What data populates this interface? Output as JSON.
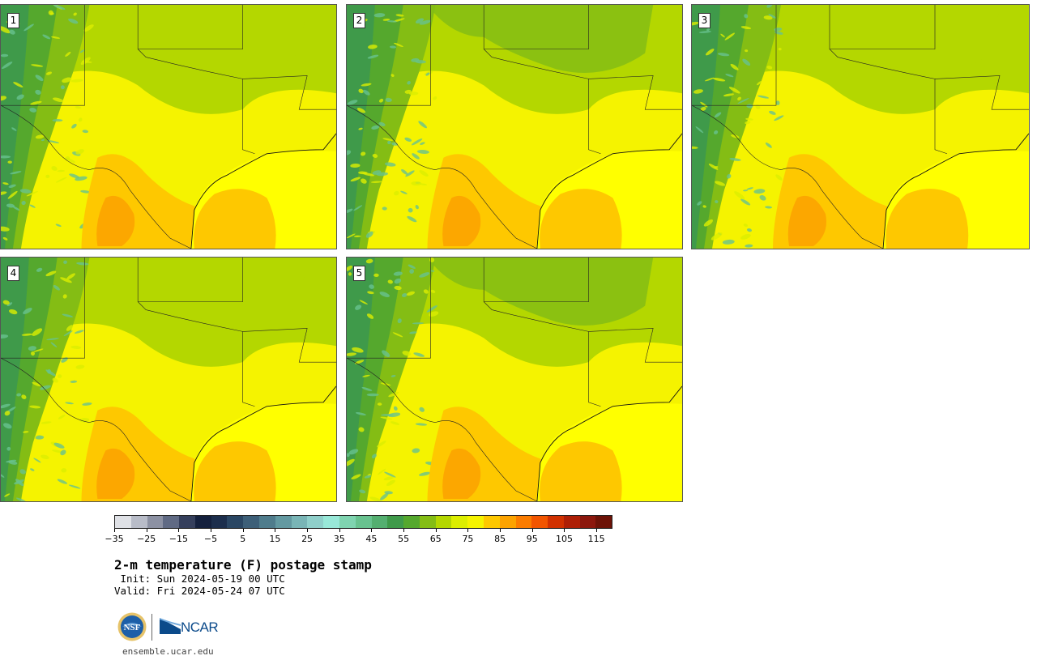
{
  "panels": [
    {
      "label": "1"
    },
    {
      "label": "2"
    },
    {
      "label": "3"
    },
    {
      "label": "4"
    },
    {
      "label": "5"
    }
  ],
  "colorbar": {
    "colors": [
      "#dfe1e6",
      "#b8bcc8",
      "#8c91a3",
      "#606a84",
      "#353f5c",
      "#14203d",
      "#1c2e4c",
      "#2a4663",
      "#3d5f78",
      "#4f7c8c",
      "#6399a1",
      "#79b5b6",
      "#8fcfca",
      "#98e8d8",
      "#7fd4b0",
      "#68c28f",
      "#54af70",
      "#3f9a4a",
      "#55a82d",
      "#84bd14",
      "#b4d700",
      "#dcee00",
      "#f5f300",
      "#fec800",
      "#fca300",
      "#fb7c00",
      "#f25500",
      "#d13100",
      "#ae1f06",
      "#8c170d",
      "#6d1207"
    ],
    "ticks": [
      "−35",
      "−25",
      "−15",
      "−5",
      "5",
      "15",
      "25",
      "35",
      "45",
      "55",
      "65",
      "75",
      "85",
      "95",
      "105",
      "115"
    ]
  },
  "title": "2-m temperature (F) postage stamp",
  "init": " Init: Sun 2024-05-19 00 UTC",
  "valid": "Valid: Fri 2024-05-24 07 UTC",
  "logos": {
    "ncar": "NCAR",
    "nsf": "NSF"
  },
  "site": "ensemble.ucar.edu",
  "palette": {
    "gulf": "#ffff00",
    "hot": "#fec800",
    "warm": "#f5f300",
    "mild": "#dcee00",
    "cool": "#b4d700",
    "green": "#84bd14",
    "forest": "#55a82d",
    "deep": "#3f9a4a",
    "teal": "#68c28f"
  }
}
